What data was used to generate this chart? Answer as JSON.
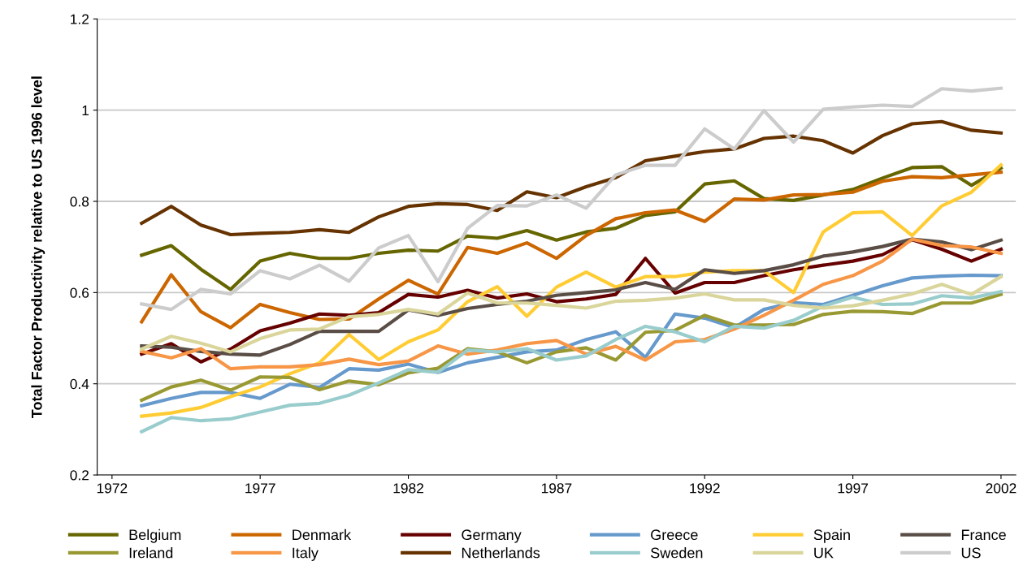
{
  "chart_data": {
    "type": "line",
    "ylabel": "Total Factor Productivity relative to US 1996 level",
    "x": [
      1973,
      1974,
      1975,
      1976,
      1977,
      1978,
      1979,
      1980,
      1981,
      1982,
      1983,
      1984,
      1985,
      1986,
      1987,
      1988,
      1989,
      1990,
      1991,
      1992,
      1993,
      1994,
      1995,
      1996,
      1997,
      1998,
      1999,
      2000,
      2001,
      2002
    ],
    "xlim": [
      1971.5,
      2002.5
    ],
    "xticks": [
      1972,
      1977,
      1982,
      1987,
      1992,
      1997,
      2002
    ],
    "ylim": [
      0.2,
      1.2
    ],
    "yticks": [
      0.2,
      0.4,
      0.6,
      0.8,
      1,
      1.2
    ],
    "grid": "y",
    "legend": "bottom",
    "marker": "none",
    "line_style": "solid",
    "series": [
      {
        "name": "Belgium",
        "color": "#666600",
        "values": [
          0.682,
          0.703,
          0.651,
          0.607,
          0.669,
          0.686,
          0.675,
          0.675,
          0.686,
          0.693,
          0.691,
          0.724,
          0.719,
          0.736,
          0.715,
          0.733,
          0.741,
          0.769,
          0.777,
          0.838,
          0.845,
          0.806,
          0.802,
          0.814,
          0.826,
          0.851,
          0.874,
          0.876,
          0.835,
          0.873
        ]
      },
      {
        "name": "Denmark",
        "color": "#cc6600",
        "values": [
          0.536,
          0.639,
          0.558,
          0.523,
          0.574,
          0.556,
          0.541,
          0.542,
          0.586,
          0.627,
          0.597,
          0.699,
          0.686,
          0.709,
          0.675,
          0.725,
          0.762,
          0.775,
          0.781,
          0.756,
          0.805,
          0.803,
          0.814,
          0.815,
          0.82,
          0.844,
          0.854,
          0.852,
          0.858,
          0.864
        ]
      },
      {
        "name": "Germany",
        "color": "#660000",
        "values": [
          0.465,
          0.488,
          0.448,
          0.476,
          0.516,
          0.533,
          0.553,
          0.55,
          0.556,
          0.596,
          0.59,
          0.605,
          0.588,
          0.597,
          0.58,
          0.586,
          0.596,
          0.675,
          0.599,
          0.622,
          0.622,
          0.637,
          0.65,
          0.66,
          0.669,
          0.683,
          0.716,
          0.695,
          0.669,
          0.695
        ]
      },
      {
        "name": "Greece",
        "color": "#6699cc",
        "values": [
          0.352,
          0.368,
          0.381,
          0.381,
          0.368,
          0.399,
          0.392,
          0.433,
          0.43,
          0.443,
          0.425,
          0.446,
          0.458,
          0.47,
          0.474,
          0.497,
          0.514,
          0.458,
          0.553,
          0.544,
          0.523,
          0.563,
          0.578,
          0.574,
          0.594,
          0.615,
          0.632,
          0.636,
          0.638,
          0.637
        ]
      },
      {
        "name": "Spain",
        "color": "#ffcc33",
        "values": [
          0.329,
          0.336,
          0.348,
          0.372,
          0.393,
          0.422,
          0.446,
          0.508,
          0.453,
          0.492,
          0.518,
          0.58,
          0.613,
          0.548,
          0.612,
          0.645,
          0.612,
          0.635,
          0.635,
          0.645,
          0.648,
          0.648,
          0.6,
          0.733,
          0.775,
          0.777,
          0.725,
          0.79,
          0.82,
          0.88
        ]
      },
      {
        "name": "France",
        "color": "#594d46",
        "values": [
          0.483,
          0.48,
          0.471,
          0.465,
          0.463,
          0.486,
          0.515,
          0.515,
          0.515,
          0.562,
          0.55,
          0.565,
          0.574,
          0.581,
          0.594,
          0.6,
          0.606,
          0.622,
          0.607,
          0.65,
          0.642,
          0.648,
          0.661,
          0.68,
          0.689,
          0.701,
          0.717,
          0.711,
          0.694,
          0.715
        ]
      },
      {
        "name": "Ireland",
        "color": "#999933",
        "values": [
          0.364,
          0.393,
          0.408,
          0.386,
          0.415,
          0.414,
          0.387,
          0.406,
          0.398,
          0.424,
          0.434,
          0.477,
          0.47,
          0.446,
          0.47,
          0.479,
          0.452,
          0.513,
          0.517,
          0.55,
          0.529,
          0.529,
          0.53,
          0.552,
          0.559,
          0.558,
          0.554,
          0.577,
          0.577,
          0.596
        ]
      },
      {
        "name": "Italy",
        "color": "#f79646",
        "values": [
          0.471,
          0.457,
          0.477,
          0.433,
          0.437,
          0.437,
          0.442,
          0.454,
          0.442,
          0.45,
          0.483,
          0.465,
          0.474,
          0.488,
          0.495,
          0.465,
          0.482,
          0.452,
          0.492,
          0.497,
          0.52,
          0.55,
          0.583,
          0.618,
          0.637,
          0.669,
          0.717,
          0.703,
          0.7,
          0.686
        ]
      },
      {
        "name": "Netherlands",
        "color": "#663300",
        "values": [
          0.752,
          0.789,
          0.748,
          0.727,
          0.73,
          0.732,
          0.738,
          0.732,
          0.766,
          0.789,
          0.795,
          0.793,
          0.78,
          0.821,
          0.808,
          0.832,
          0.852,
          0.889,
          0.899,
          0.909,
          0.915,
          0.938,
          0.943,
          0.933,
          0.906,
          0.944,
          0.97,
          0.975,
          0.956,
          0.95
        ]
      },
      {
        "name": "Sweden",
        "color": "#99cccc",
        "values": [
          0.295,
          0.326,
          0.319,
          0.323,
          0.338,
          0.353,
          0.357,
          0.375,
          0.402,
          0.431,
          0.425,
          0.474,
          0.47,
          0.477,
          0.452,
          0.461,
          0.497,
          0.526,
          0.514,
          0.492,
          0.526,
          0.522,
          0.539,
          0.57,
          0.59,
          0.574,
          0.575,
          0.593,
          0.588,
          0.602
        ]
      },
      {
        "name": "UK",
        "color": "#d9d59b",
        "values": [
          0.476,
          0.504,
          0.489,
          0.47,
          0.499,
          0.518,
          0.52,
          0.547,
          0.552,
          0.563,
          0.553,
          0.599,
          0.577,
          0.577,
          0.572,
          0.566,
          0.581,
          0.583,
          0.588,
          0.597,
          0.584,
          0.584,
          0.572,
          0.566,
          0.571,
          0.583,
          0.597,
          0.618,
          0.596,
          0.635
        ]
      },
      {
        "name": "US",
        "color": "#cccccc",
        "values": [
          0.575,
          0.563,
          0.607,
          0.597,
          0.648,
          0.63,
          0.66,
          0.625,
          0.698,
          0.725,
          0.624,
          0.741,
          0.791,
          0.79,
          0.814,
          0.785,
          0.858,
          0.879,
          0.879,
          0.959,
          0.915,
          0.999,
          0.93,
          1.002,
          1.007,
          1.011,
          1.008,
          1.047,
          1.042,
          1.048
        ]
      }
    ]
  }
}
